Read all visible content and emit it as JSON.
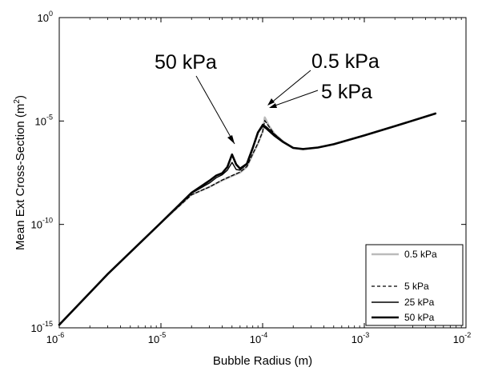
{
  "chart_data": {
    "type": "line",
    "xscale": "log",
    "yscale": "log",
    "xlim": [
      1e-06,
      0.01
    ],
    "ylim": [
      1e-15,
      1
    ],
    "xlabel": "Bubble Radius (m)",
    "ylabel_base": "Mean Ext Cross-Section (m",
    "ylabel_sup": "2",
    "ylabel_end": ")",
    "x_ticks": [
      {
        "value": 1e-06,
        "base": "10",
        "exp": "-6"
      },
      {
        "value": 1e-05,
        "base": "10",
        "exp": "-5"
      },
      {
        "value": 0.0001,
        "base": "10",
        "exp": "-4"
      },
      {
        "value": 0.001,
        "base": "10",
        "exp": "-3"
      },
      {
        "value": 0.01,
        "base": "10",
        "exp": "-2"
      }
    ],
    "y_ticks": [
      {
        "value": 1,
        "base": "10",
        "exp": "0"
      },
      {
        "value": 1e-05,
        "base": "10",
        "exp": "-5"
      },
      {
        "value": 1e-10,
        "base": "10",
        "exp": "-10"
      },
      {
        "value": 1e-15,
        "base": "10",
        "exp": "-15"
      }
    ],
    "series": [
      {
        "name": "0.5 kPa",
        "color": "#bbbbbb",
        "width": 2.5,
        "dash": "",
        "x": [
          1e-06,
          3e-06,
          1e-05,
          2e-05,
          3e-05,
          4e-05,
          5e-05,
          6e-05,
          7e-05,
          8e-05,
          9e-05,
          0.0001,
          0.000105,
          0.000115,
          0.00013,
          0.00016,
          0.0002,
          0.00025,
          0.00035,
          0.0005,
          0.001,
          0.002,
          0.005
        ],
        "y": [
          1.4e-15,
          4e-13,
          1.2e-10,
          2.7e-09,
          6.5e-09,
          1.35e-08,
          2.2e-08,
          3.2e-08,
          6e-08,
          2.5e-07,
          8e-07,
          3e-06,
          1.5e-05,
          6e-06,
          2.5e-06,
          1e-06,
          5e-07,
          4.4e-07,
          5.2e-07,
          7.5e-07,
          2e-06,
          5.6e-06,
          2.3e-05
        ]
      },
      {
        "name": "5 kPa",
        "color": "#000000",
        "width": 1.3,
        "dash": "4,3",
        "x": [
          1e-06,
          3e-06,
          1e-05,
          2e-05,
          3e-05,
          4e-05,
          5e-05,
          6e-05,
          7e-05,
          8e-05,
          9e-05,
          0.0001,
          0.000105,
          0.000115,
          0.00013,
          0.00016,
          0.0002,
          0.00025,
          0.00035,
          0.0005,
          0.001,
          0.002,
          0.005
        ],
        "y": [
          1.4e-15,
          4e-13,
          1.2e-10,
          2.7e-09,
          6.5e-09,
          1.4e-08,
          2.3e-08,
          3.4e-08,
          6.3e-08,
          2.6e-07,
          8.5e-07,
          3e-06,
          1.05e-05,
          5.5e-06,
          2.4e-06,
          1e-06,
          5e-07,
          4.4e-07,
          5.2e-07,
          7.5e-07,
          2e-06,
          5.6e-06,
          2.3e-05
        ]
      },
      {
        "name": "25 kPa",
        "color": "#000000",
        "width": 1.4,
        "dash": "",
        "x": [
          1e-06,
          3e-06,
          1e-05,
          2e-05,
          3e-05,
          3.5e-05,
          4e-05,
          4.5e-05,
          5e-05,
          5.5e-05,
          6e-05,
          7e-05,
          8e-05,
          9e-05,
          0.0001,
          0.00011,
          0.00013,
          0.00016,
          0.0002,
          0.00025,
          0.00035,
          0.0005,
          0.001,
          0.002,
          0.005
        ],
        "y": [
          1.4e-15,
          4e-13,
          1.2e-10,
          3.2e-09,
          1e-08,
          1.8e-08,
          2.5e-08,
          4.2e-08,
          1e-07,
          4.5e-08,
          4.2e-08,
          8e-08,
          5e-07,
          3e-06,
          7e-06,
          5e-06,
          2.3e-06,
          1e-06,
          5e-07,
          4.4e-07,
          5.2e-07,
          7.5e-07,
          2e-06,
          5.6e-06,
          2.3e-05
        ]
      },
      {
        "name": "50 kPa",
        "color": "#000000",
        "width": 2.6,
        "dash": "",
        "x": [
          1e-06,
          3e-06,
          1e-05,
          2e-05,
          3e-05,
          3.5e-05,
          4e-05,
          4.5e-05,
          5e-05,
          5.5e-05,
          6e-05,
          7e-05,
          8e-05,
          9e-05,
          0.0001,
          0.00011,
          0.00013,
          0.00016,
          0.0002,
          0.00025,
          0.00035,
          0.0005,
          0.001,
          0.002,
          0.005
        ],
        "y": [
          1.4e-15,
          4e-13,
          1.2e-10,
          3.4e-09,
          1.3e-08,
          2.3e-08,
          3e-08,
          6e-08,
          2.4e-07,
          8e-08,
          5e-08,
          8.5e-08,
          5e-07,
          2.8e-06,
          6e-06,
          4.2e-06,
          2e-06,
          9.5e-07,
          5e-07,
          4.4e-07,
          5.2e-07,
          7.5e-07,
          2e-06,
          5.6e-06,
          2.3e-05
        ]
      }
    ],
    "legend": {
      "position": "bottom-right",
      "entries": [
        "0.5 kPa",
        "5 kPa",
        "25 kPa",
        "50 kPa"
      ]
    },
    "annotations": [
      {
        "text": "50 kPa",
        "target": [
          5e-05,
          2.4e-07
        ]
      },
      {
        "text": "0.5 kPa",
        "target": [
          0.000105,
          1.5e-05
        ]
      },
      {
        "text": "5 kPa",
        "target": [
          0.000107,
          9e-06
        ]
      }
    ],
    "grid": false
  }
}
